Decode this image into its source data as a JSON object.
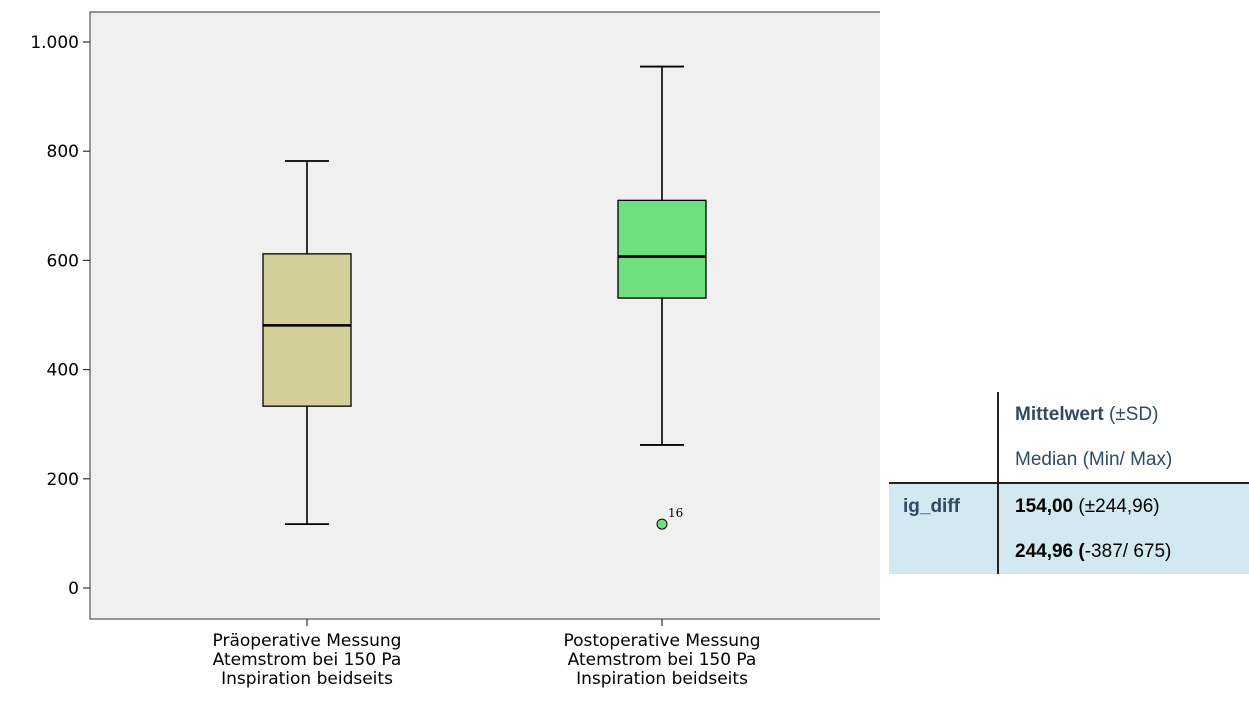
{
  "chart_data": {
    "type": "box",
    "ylim": [
      -30,
      1055
    ],
    "y_ticks": [
      {
        "value": 0,
        "label": "0"
      },
      {
        "value": 200,
        "label": "200"
      },
      {
        "value": 400,
        "label": "400"
      },
      {
        "value": 600,
        "label": "600"
      },
      {
        "value": 800,
        "label": "800"
      },
      {
        "value": 1000,
        "label": "1.000"
      }
    ],
    "boxes": [
      {
        "label_lines": [
          "Präoperative Messung",
          "Atemstrom bei 150 Pa",
          "Inspiration beidseits"
        ],
        "whisker_low": 117,
        "q1": 333,
        "median": 481,
        "q3": 612,
        "whisker_high": 782,
        "color": "#d4cf9a",
        "outliers": []
      },
      {
        "label_lines": [
          "Postoperative Messung",
          "Atemstrom bei 150 Pa",
          "Inspiration beidseits"
        ],
        "whisker_low": 262,
        "q1": 531,
        "median": 607,
        "q3": 710,
        "whisker_high": 955,
        "color": "#6fdf80",
        "outliers": [
          {
            "value": 117,
            "label": "16"
          }
        ]
      }
    ],
    "plot_background": "#f0f0f0"
  },
  "stats_table": {
    "header": {
      "line1_bold": "Mittelwert",
      "line1_rest": " (±SD)",
      "line2": "Median (Min/ Max)"
    },
    "row": {
      "name": "ig_diff",
      "line1_bold": "154,00",
      "line1_rest": " (±244,96)",
      "line2_bold": "244,96 (",
      "line2_rest": "-387/ 675)"
    }
  }
}
